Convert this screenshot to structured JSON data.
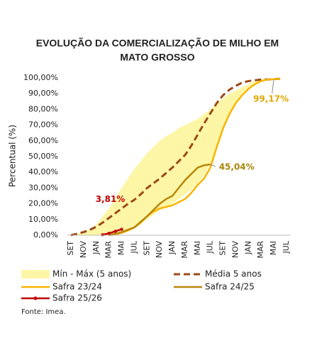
{
  "chart_data": {
    "type": "line",
    "title": [
      "EVOLUÇÃO DA COMERCIALIZAÇÃO DE MILHO EM",
      "MATO GROSSO"
    ],
    "y_label": "Percentual (%)",
    "source": "Fonte: Imea.",
    "categories": [
      "SET",
      null,
      "NOV",
      null,
      "JAN",
      null,
      "MAR",
      null,
      "MAI",
      null,
      "JUL",
      null,
      "SET",
      null,
      "NOV",
      null,
      "JAN",
      null,
      "MAR",
      null,
      "MAI",
      null,
      "JUL",
      null,
      "SET",
      null,
      "NOV",
      null,
      "JAN",
      null,
      "MAR",
      null,
      "MAI",
      null,
      "JUL"
    ],
    "ylim": [
      0,
      100
    ],
    "yticks": [
      {
        "value": 0,
        "label": "0,00%"
      },
      {
        "value": 10,
        "label": "10,00%"
      },
      {
        "value": 20,
        "label": "20,00%"
      },
      {
        "value": 30,
        "label": "30,00%"
      },
      {
        "value": 40,
        "label": "40,00%"
      },
      {
        "value": 50,
        "label": "50,00%"
      },
      {
        "value": 60,
        "label": "60,00%"
      },
      {
        "value": 70,
        "label": "70,00%"
      },
      {
        "value": 80,
        "label": "80,00%"
      },
      {
        "value": 90,
        "label": "90,00%"
      },
      {
        "value": 100,
        "label": "100,00%"
      }
    ],
    "grid": false,
    "series": [
      {
        "name": "Mín - Máx (5 anos)",
        "style": "band",
        "color": "#fdf6a6",
        "high": [
          0,
          1,
          2,
          4,
          7,
          12,
          17,
          23,
          30,
          36,
          42,
          47,
          52,
          56,
          60,
          63,
          65,
          68,
          70,
          72,
          74,
          77,
          80,
          84,
          87,
          90,
          92,
          94,
          96,
          98,
          99,
          99.5,
          100,
          100,
          100
        ],
        "low": [
          0,
          0,
          0,
          0,
          0,
          0,
          0,
          0.5,
          1,
          2.5,
          4,
          7,
          10,
          13,
          16,
          18,
          20,
          23,
          26,
          29,
          33,
          38,
          45,
          57,
          68,
          77,
          85,
          90,
          94,
          96,
          98,
          99,
          100,
          100,
          100
        ]
      },
      {
        "name": "Média 5 anos",
        "style": "dashed",
        "color": "#9c4a1a",
        "values": [
          0,
          1,
          2,
          3.5,
          5.4,
          8,
          11,
          14,
          17,
          20,
          22.5,
          26,
          30,
          33,
          36,
          39.5,
          43,
          47,
          51,
          57,
          64,
          71,
          77.5,
          84,
          89,
          92.5,
          95,
          97,
          98,
          98.5,
          99,
          99,
          99.2,
          99.5,
          null
        ]
      },
      {
        "name": "Safra 23/24",
        "style": "solid",
        "color": "#f7b500",
        "values": [
          null,
          null,
          null,
          null,
          null,
          null,
          0,
          0.5,
          1.5,
          3,
          5,
          8,
          12,
          15,
          17,
          18,
          19,
          21,
          23,
          27,
          32,
          36,
          43,
          56,
          68,
          77,
          84,
          89,
          93,
          96,
          98,
          99,
          99.17,
          99.5,
          null
        ],
        "value_labels": [
          null,
          null,
          null,
          null,
          null,
          null,
          null,
          null,
          null,
          null,
          null,
          null,
          null,
          null,
          null,
          null,
          null,
          null,
          null,
          null,
          null,
          null,
          null,
          null,
          null,
          null,
          null,
          null,
          null,
          null,
          null,
          null,
          "99,17%",
          null,
          null
        ]
      },
      {
        "name": "Safra 24/25",
        "style": "solid",
        "color": "#b8860b",
        "values": [
          null,
          null,
          null,
          null,
          null,
          null,
          0,
          1,
          2,
          3.5,
          5,
          8.5,
          12,
          16,
          20,
          23,
          25,
          30,
          35,
          39,
          43,
          44.5,
          45.04,
          null,
          null,
          null,
          null,
          null,
          null,
          null,
          null,
          null,
          null,
          null,
          null
        ],
        "value_labels": [
          null,
          null,
          null,
          null,
          null,
          null,
          null,
          null,
          null,
          null,
          null,
          null,
          null,
          null,
          null,
          null,
          null,
          null,
          null,
          null,
          null,
          null,
          "45,04%",
          null,
          null,
          null,
          null,
          null,
          null,
          null,
          null,
          null,
          null,
          null,
          null
        ]
      },
      {
        "name": "Safra 25/26",
        "style": "markers",
        "color": "#c00000",
        "values": [
          null,
          null,
          null,
          null,
          null,
          0.3,
          1.2,
          2.5,
          3.81,
          null,
          null,
          null,
          null,
          null,
          null,
          null,
          null,
          null,
          null,
          null,
          null,
          null,
          null,
          null,
          null,
          null,
          null,
          null,
          null,
          null,
          null,
          null,
          null,
          null,
          null
        ],
        "value_labels": [
          null,
          null,
          null,
          null,
          null,
          null,
          null,
          null,
          "3,81%",
          null,
          null,
          null,
          null,
          null,
          null,
          null,
          null,
          null,
          null,
          null,
          null,
          null,
          null,
          null,
          null,
          null,
          null,
          null,
          null,
          null,
          null,
          null,
          null,
          null,
          null
        ]
      }
    ]
  }
}
